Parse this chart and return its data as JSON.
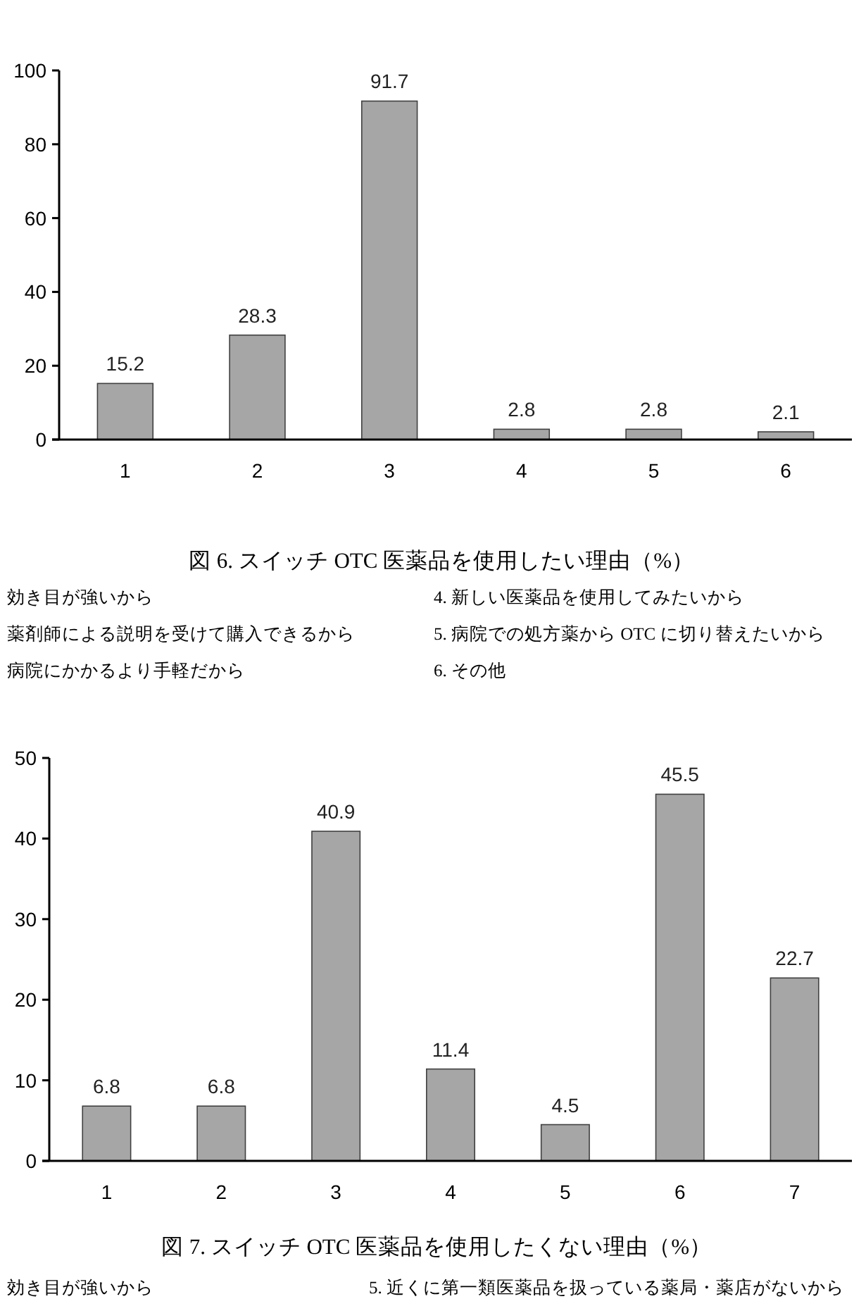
{
  "chart_data": [
    {
      "type": "bar",
      "title": "図 6. スイッチ OTC 医薬品を使用したい理由（%）",
      "categories": [
        "1",
        "2",
        "3",
        "4",
        "5",
        "6"
      ],
      "values": [
        15.2,
        28.3,
        91.7,
        2.8,
        2.8,
        2.1
      ],
      "color": "#a6a6a6",
      "ylim": [
        0,
        100
      ],
      "yticks": [
        0,
        20,
        40,
        60,
        80,
        100
      ],
      "data_labels": true,
      "annotations": [
        "効き目が強いから",
        "薬剤師による説明を受けて購入できるから",
        "病院にかかるより手軽だから",
        "4. 新しい医薬品を使用してみたいから",
        "5. 病院での処方薬から OTC に切り替えたいから",
        "6. その他"
      ]
    },
    {
      "type": "bar",
      "title": "図 7. スイッチ OTC 医薬品を使用したくない理由（%）",
      "categories": [
        "1",
        "2",
        "3",
        "4",
        "5",
        "6",
        "7"
      ],
      "values": [
        6.8,
        6.8,
        40.9,
        11.4,
        4.5,
        45.5,
        22.7
      ],
      "color": "#a6a6a6",
      "ylim": [
        0,
        50
      ],
      "yticks": [
        0,
        10,
        20,
        30,
        40,
        50
      ],
      "data_labels": true,
      "annotations": [
        "効き目が強いから",
        "5. 近くに第一類医薬品を扱っている薬局・薬店がないから"
      ]
    }
  ]
}
